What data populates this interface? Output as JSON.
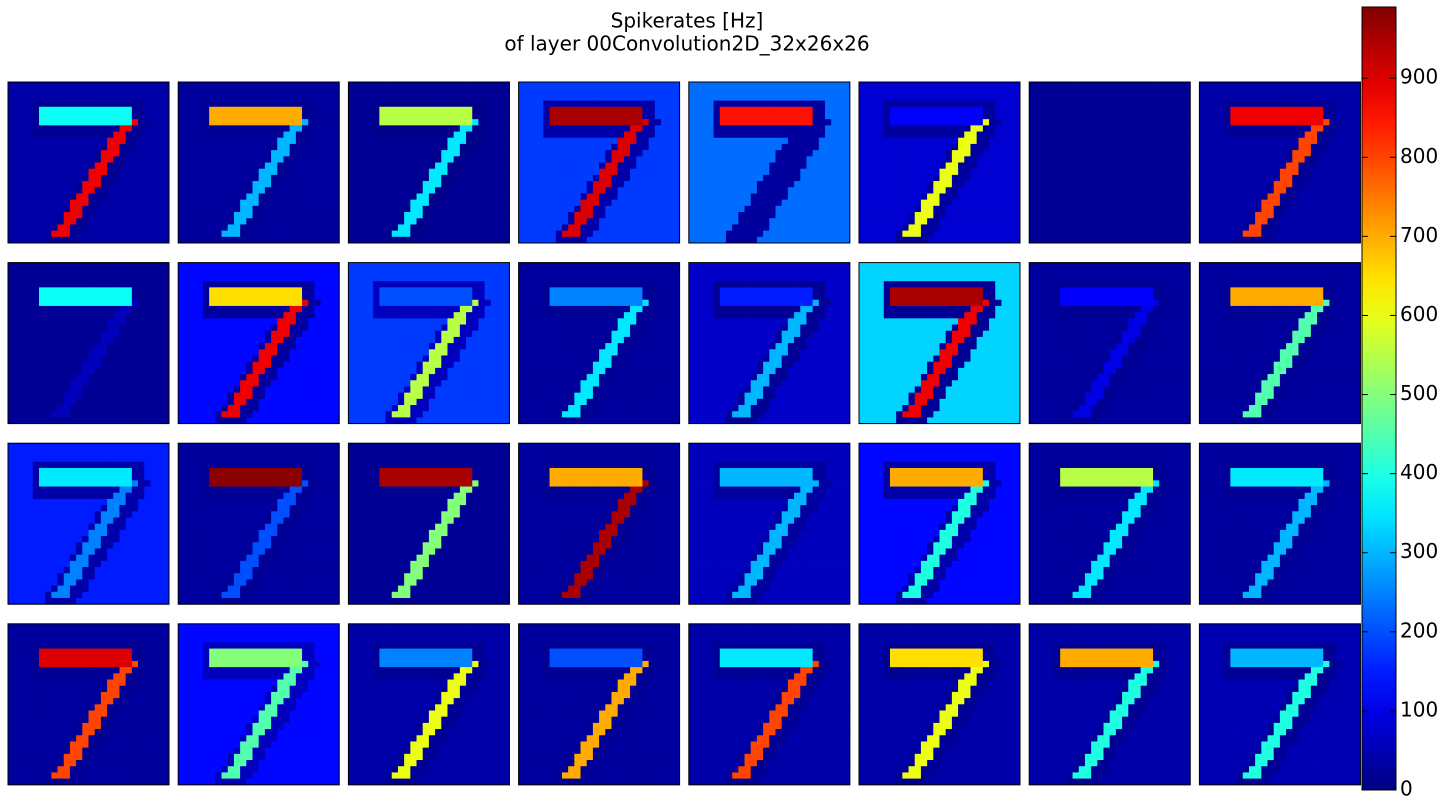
{
  "chart_data": {
    "type": "heatmap-grid",
    "title": "Spikerates [Hz]",
    "subtitle": "of layer 00Convolution2D_32x26x26",
    "colormap": "jet",
    "clim": [
      0,
      990
    ],
    "cticks": [
      0,
      100,
      200,
      300,
      400,
      500,
      600,
      700,
      800,
      900
    ],
    "grid_shape": [
      26,
      26
    ],
    "panels": [
      {
        "background": 40,
        "shadow": 20,
        "bar": 380,
        "stroke": 880
      },
      {
        "background": 30,
        "shadow": 20,
        "bar": 700,
        "stroke": 300
      },
      {
        "background": 20,
        "shadow": 10,
        "bar": 550,
        "stroke": 350
      },
      {
        "background": 180,
        "shadow": 40,
        "bar": 950,
        "stroke": 900
      },
      {
        "background": 230,
        "shadow": 30,
        "bar": 850,
        "stroke": 30
      },
      {
        "background": 80,
        "shadow": 30,
        "bar": 120,
        "stroke": 600
      },
      {
        "background": 20,
        "shadow": 20,
        "bar": 20,
        "stroke": 20
      },
      {
        "background": 40,
        "shadow": 20,
        "bar": 880,
        "stroke": 800
      },
      {
        "background": 20,
        "shadow": 20,
        "bar": 380,
        "stroke": 60
      },
      {
        "background": 130,
        "shadow": 30,
        "bar": 650,
        "stroke": 880
      },
      {
        "background": 180,
        "shadow": 60,
        "bar": 200,
        "stroke": 550
      },
      {
        "background": 30,
        "shadow": 20,
        "bar": 250,
        "stroke": 350
      },
      {
        "background": 70,
        "shadow": 20,
        "bar": 150,
        "stroke": 300
      },
      {
        "background": 330,
        "shadow": 20,
        "bar": 950,
        "stroke": 880
      },
      {
        "background": 30,
        "shadow": 20,
        "bar": 120,
        "stroke": 100
      },
      {
        "background": 30,
        "shadow": 20,
        "bar": 700,
        "stroke": 450
      },
      {
        "background": 150,
        "shadow": 40,
        "bar": 350,
        "stroke": 250
      },
      {
        "background": 30,
        "shadow": 20,
        "bar": 980,
        "stroke": 200
      },
      {
        "background": 20,
        "shadow": 20,
        "bar": 950,
        "stroke": 500
      },
      {
        "background": 30,
        "shadow": 20,
        "bar": 700,
        "stroke": 950
      },
      {
        "background": 60,
        "shadow": 30,
        "bar": 300,
        "stroke": 300
      },
      {
        "background": 130,
        "shadow": 40,
        "bar": 700,
        "stroke": 400
      },
      {
        "background": 30,
        "shadow": 20,
        "bar": 550,
        "stroke": 350
      },
      {
        "background": 30,
        "shadow": 20,
        "bar": 350,
        "stroke": 300
      },
      {
        "background": 30,
        "shadow": 20,
        "bar": 900,
        "stroke": 800
      },
      {
        "background": 130,
        "shadow": 60,
        "bar": 500,
        "stroke": 450
      },
      {
        "background": 40,
        "shadow": 20,
        "bar": 250,
        "stroke": 600
      },
      {
        "background": 30,
        "shadow": 20,
        "bar": 200,
        "stroke": 700
      },
      {
        "background": 40,
        "shadow": 20,
        "bar": 350,
        "stroke": 800
      },
      {
        "background": 40,
        "shadow": 20,
        "bar": 650,
        "stroke": 600
      },
      {
        "background": 40,
        "shadow": 20,
        "bar": 700,
        "stroke": 400
      },
      {
        "background": 50,
        "shadow": 20,
        "bar": 300,
        "stroke": 400
      }
    ]
  }
}
